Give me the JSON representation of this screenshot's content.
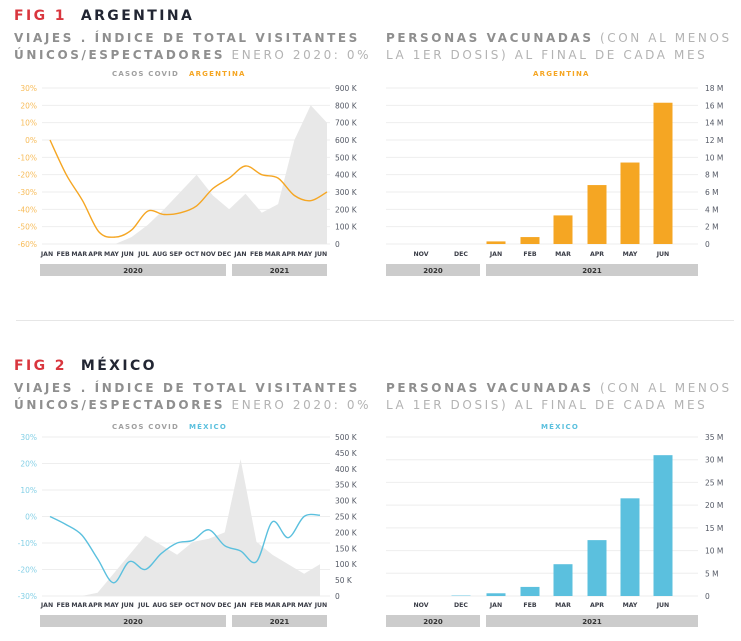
{
  "colors": {
    "fig_label": "#d9363e",
    "country_title": "#222633",
    "argentina": "#f5a623",
    "mexico": "#5bc0de",
    "covid_area": "#e8e8e8",
    "year_band": "#cccccc",
    "grid": "#eeeeee"
  },
  "figures": [
    {
      "fig_label": "FIG 1",
      "country": "ARGENTINA",
      "left_subtitle_bold_1": "VIAJES . ÍNDICE DE TOTAL VISITANTES",
      "left_subtitle_bold_2": "ÚNICOS/ESPECTADORES",
      "left_subtitle_light": "ENERO 2020: 0%",
      "right_subtitle_bold": "PERSONAS VACUNADAS",
      "right_subtitle_light_1": "(CON AL MENOS",
      "right_subtitle_light_2": "LA 1ER DOSIS) AL FINAL DE CADA MES",
      "legend_covid": "CASOS COVID",
      "legend_country": "ARGENTINA",
      "bar_legend": "ARGENTINA"
    },
    {
      "fig_label": "FIG 2",
      "country": "MÉXICO",
      "left_subtitle_bold_1": "VIAJES . ÍNDICE DE TOTAL VISITANTES",
      "left_subtitle_bold_2": "ÚNICOS/ESPECTADORES",
      "left_subtitle_light": "ENERO 2020: 0%",
      "right_subtitle_bold": "PERSONAS VACUNADAS",
      "right_subtitle_light_1": "(CON AL MENOS",
      "right_subtitle_light_2": "LA 1ER DOSIS) AL FINAL DE CADA MES",
      "legend_covid": "CASOS COVID",
      "legend_country": "MÉXICO",
      "bar_legend": "MÉXICO"
    }
  ],
  "chart_data": [
    {
      "id": "arg-line",
      "type": "line",
      "title": "VIAJES . ÍNDICE DE TOTAL VISITANTES ÚNICOS/ESPECTADORES ENERO 2020: 0%",
      "categories": [
        "JAN",
        "FEB",
        "MAR",
        "APR",
        "MAY",
        "JUN",
        "JUL",
        "AUG",
        "SEP",
        "OCT",
        "NOV",
        "DEC",
        "JAN",
        "FEB",
        "MAR",
        "APR",
        "MAY",
        "JUN"
      ],
      "year_groups": [
        {
          "label": "2020",
          "months": 12
        },
        {
          "label": "2021",
          "months": 6
        }
      ],
      "y_left": {
        "ticks": [
          "30%",
          "20%",
          "10%",
          "0%",
          "-10%",
          "-20%",
          "-30%",
          "-40%",
          "-50%",
          "-60%"
        ],
        "range": [
          -60,
          30
        ]
      },
      "y_right": {
        "ticks": [
          "900 K",
          "800 K",
          "700 K",
          "600 K",
          "500 K",
          "400 K",
          "300 K",
          "200 K",
          "100 K",
          "0"
        ],
        "range": [
          0,
          900000
        ]
      },
      "series": [
        {
          "name": "ARGENTINA",
          "axis": "left",
          "values": [
            0,
            -20,
            -35,
            -53,
            -56,
            -52,
            -41,
            -43,
            -42,
            -38,
            -28,
            -22,
            -15,
            -20,
            -22,
            -32,
            -35,
            -30
          ]
        },
        {
          "name": "CASOS COVID",
          "axis": "right",
          "type": "area",
          "values": [
            0,
            0,
            0,
            0,
            0,
            40000,
            110000,
            200000,
            300000,
            400000,
            280000,
            200000,
            290000,
            180000,
            230000,
            600000,
            800000,
            700000
          ]
        }
      ],
      "grid": true
    },
    {
      "id": "arg-bar",
      "type": "bar",
      "title": "PERSONAS VACUNADAS (CON AL MENOS LA 1ER DOSIS) AL FINAL DE CADA MES",
      "legend": "ARGENTINA",
      "categories": [
        "NOV",
        "DEC",
        "JAN",
        "FEB",
        "MAR",
        "APR",
        "MAY",
        "JUN"
      ],
      "year_groups": [
        {
          "label": "2020",
          "months": 2
        },
        {
          "label": "2021",
          "months": 6
        }
      ],
      "values": [
        0,
        0,
        0.3,
        0.8,
        3.3,
        6.8,
        9.4,
        16.3
      ],
      "y_ticks": [
        "18 M",
        "16 M",
        "14 M",
        "12 M",
        "10 M",
        "8 M",
        "6 M",
        "4 M",
        "2 M",
        "0"
      ],
      "ylim": [
        0,
        18
      ],
      "grid": true
    },
    {
      "id": "mex-line",
      "type": "line",
      "title": "VIAJES . ÍNDICE DE TOTAL VISITANTES ÚNICOS/ESPECTADORES ENERO 2020: 0%",
      "categories": [
        "JAN",
        "FEB",
        "MAR",
        "APR",
        "MAY",
        "JUN",
        "JUL",
        "AUG",
        "SEP",
        "OCT",
        "NOV",
        "DEC",
        "JAN",
        "FEB",
        "MAR",
        "APR",
        "MAY",
        "JUN"
      ],
      "year_groups": [
        {
          "label": "2020",
          "months": 12
        },
        {
          "label": "2021",
          "months": 6
        }
      ],
      "y_left": {
        "ticks": [
          "30%",
          "20%",
          "10%",
          "0%",
          "-10%",
          "-20%",
          "-30%"
        ],
        "range": [
          -30,
          30
        ]
      },
      "y_right": {
        "ticks": [
          "500 K",
          "450 K",
          "400 K",
          "350 K",
          "300 K",
          "250 K",
          "200 K",
          "150 K",
          "100 K",
          "50 K",
          "0"
        ],
        "range": [
          0,
          500000
        ]
      },
      "series": [
        {
          "name": "MÉXICO",
          "axis": "left",
          "values": [
            0,
            -3,
            -7,
            -16,
            -25,
            -17,
            -20,
            -14,
            -10,
            -9,
            -5,
            -11,
            -13,
            -17,
            -2,
            -8,
            0,
            0.5
          ]
        },
        {
          "name": "CASOS COVID",
          "axis": "right",
          "type": "area",
          "values": [
            0,
            0,
            0,
            10000,
            70000,
            130000,
            190000,
            160000,
            130000,
            170000,
            180000,
            200000,
            430000,
            170000,
            130000,
            100000,
            70000,
            100000
          ]
        }
      ],
      "grid": true
    },
    {
      "id": "mex-bar",
      "type": "bar",
      "title": "PERSONAS VACUNADAS (CON AL MENOS LA 1ER DOSIS) AL FINAL DE CADA MES",
      "legend": "MÉXICO",
      "categories": [
        "NOV",
        "DEC",
        "JAN",
        "FEB",
        "MAR",
        "APR",
        "MAY",
        "JUN"
      ],
      "year_groups": [
        {
          "label": "2020",
          "months": 2
        },
        {
          "label": "2021",
          "months": 6
        }
      ],
      "values": [
        0,
        0.1,
        0.6,
        2.0,
        7.0,
        12.3,
        21.5,
        31.0
      ],
      "y_ticks": [
        "35 M",
        "30 M",
        "25 M",
        "20 M",
        "15 M",
        "10 M",
        "5 M",
        "0"
      ],
      "ylim": [
        0,
        35
      ],
      "grid": true
    }
  ]
}
